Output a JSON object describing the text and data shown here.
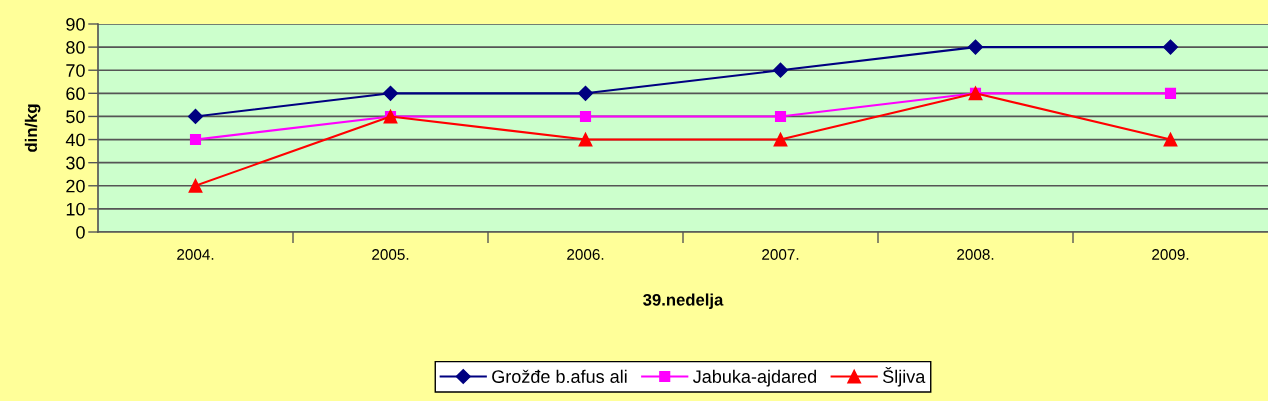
{
  "chart_data": {
    "type": "line",
    "categories": [
      "2004.",
      "2005.",
      "2006.",
      "2007.",
      "2008.",
      "2009."
    ],
    "xlabel": "39.nedelja",
    "ylabel": "din/kg",
    "ylim": [
      0,
      90
    ],
    "yticks": [
      0,
      10,
      20,
      30,
      40,
      50,
      60,
      70,
      80,
      90
    ],
    "grid": "y",
    "legend": "bottom",
    "line_style": "solid",
    "series": [
      {
        "name": "Grožđe b.afus ali",
        "color": "#000080",
        "marker": "diamond",
        "values": [
          50,
          60,
          60,
          70,
          80,
          80
        ]
      },
      {
        "name": "Jabuka-ajdared",
        "color": "#ff00ff",
        "marker": "square",
        "values": [
          40,
          50,
          50,
          50,
          60,
          60
        ]
      },
      {
        "name": "Šljiva",
        "color": "#ff0000",
        "marker": "triangle",
        "values": [
          20,
          50,
          40,
          40,
          60,
          40
        ]
      }
    ]
  }
}
